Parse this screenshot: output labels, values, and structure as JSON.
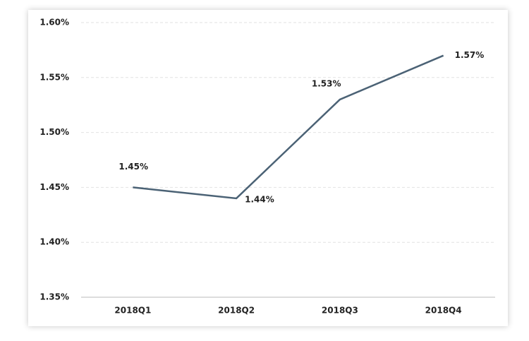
{
  "chart_data": {
    "type": "line",
    "categories": [
      "2018Q1",
      "2018Q2",
      "2018Q3",
      "2018Q4"
    ],
    "series": [
      {
        "color": "#4b6275",
        "values": [
          1.45,
          1.44,
          1.53,
          1.57
        ],
        "value_labels": [
          "1.45%",
          "1.44%",
          "1.53%",
          "1.57%"
        ]
      }
    ],
    "ylim": [
      1.35,
      1.6
    ],
    "yticks": [
      {
        "value": 1.35,
        "label": "1.35%"
      },
      {
        "value": 1.4,
        "label": "1.40%"
      },
      {
        "value": 1.45,
        "label": "1.45%"
      },
      {
        "value": 1.5,
        "label": "1.50%"
      },
      {
        "value": 1.55,
        "label": "1.55%"
      },
      {
        "value": 1.6,
        "label": "1.60%"
      }
    ],
    "grid": true
  }
}
